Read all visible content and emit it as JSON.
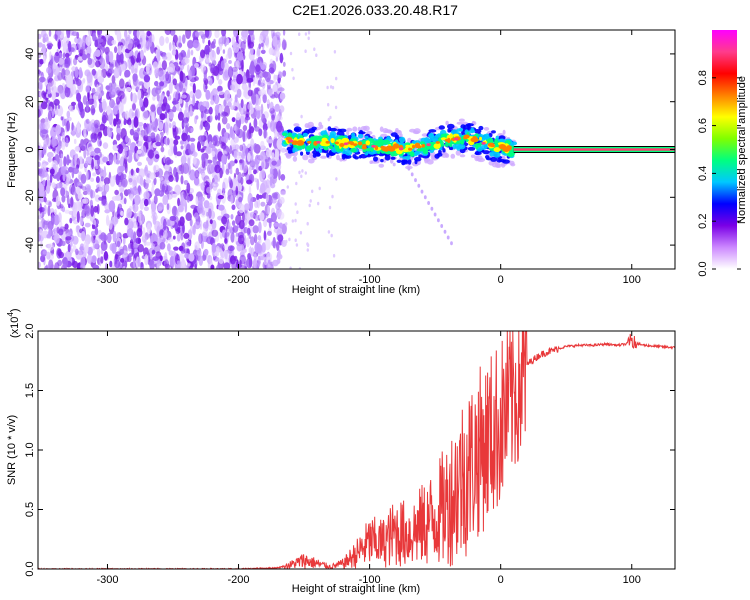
{
  "title": "C2E1.2026.033.20.48.R17",
  "chart_data": [
    {
      "type": "heatmap",
      "xlabel": "Height of straight line (km)",
      "ylabel": "Frequency (Hz)",
      "xlim": [
        -353,
        133
      ],
      "ylim": [
        -50,
        50
      ],
      "x_ticks": [
        -300,
        -200,
        -100,
        0,
        100
      ],
      "x_tick_labels": [
        "-300",
        "-200",
        "-100",
        "0",
        "100"
      ],
      "y_ticks": [
        -40,
        -20,
        0,
        20,
        40
      ],
      "y_tick_labels": [
        "-40",
        "-20",
        "0",
        "20",
        "40"
      ],
      "grid": false,
      "noise_region_x": [
        -353,
        -165
      ],
      "signal_track": {
        "x": [
          -165,
          -150,
          -130,
          -110,
          -90,
          -70,
          -55,
          -40,
          -25,
          -10,
          0,
          10
        ],
        "freq": [
          4,
          3,
          3,
          2,
          1,
          0,
          2,
          4,
          5,
          2,
          1,
          0
        ]
      },
      "carrier_line": {
        "x": [
          10,
          133
        ],
        "freq": 0
      },
      "colorbar": {
        "label": "Normalized spectral amplitude",
        "range": [
          0,
          1
        ],
        "ticks": [
          0.0,
          0.2,
          0.4,
          0.6,
          0.8
        ],
        "tick_labels": [
          "0.0",
          "0.2",
          "0.4",
          "0.6",
          "0.8"
        ],
        "colors": [
          "#ffffff",
          "#cc88ff",
          "#7a00e6",
          "#0000ff",
          "#00c8ff",
          "#00ff80",
          "#80ff00",
          "#ffff00",
          "#ff8000",
          "#ff0000",
          "#ff3c8c",
          "#ff00ff"
        ]
      }
    },
    {
      "type": "line",
      "xlabel": "Height of straight line (km)",
      "ylabel": "SNR (10 * v/v)",
      "y_multiplier": "(x10",
      "y_multiplier_exp": "4",
      "y_multiplier_close": ")",
      "xlim": [
        -353,
        133
      ],
      "ylim": [
        0,
        2.0
      ],
      "x_ticks": [
        -300,
        -200,
        -100,
        0,
        100
      ],
      "x_tick_labels": [
        "-300",
        "-200",
        "-100",
        "0",
        "100"
      ],
      "y_ticks": [
        0.0,
        0.5,
        1.0,
        1.5,
        2.0
      ],
      "y_tick_labels": [
        "0.0",
        "0.5",
        "1.0",
        "1.5",
        "2.0"
      ],
      "grid": false,
      "color": "#e8383a",
      "series": [
        {
          "x": [
            -353,
            -200,
            -170,
            -160,
            -150,
            -140,
            -130,
            -120,
            -110,
            -100,
            -90,
            -80,
            -70,
            -60,
            -50,
            -40,
            -30,
            -20,
            -10,
            0,
            5,
            10,
            15,
            20,
            30,
            40,
            50,
            60,
            70,
            80,
            90,
            100,
            110,
            120,
            133
          ],
          "y": [
            0.0,
            0.0,
            0.01,
            0.04,
            0.08,
            0.05,
            0.02,
            0.05,
            0.14,
            0.25,
            0.24,
            0.34,
            0.32,
            0.4,
            0.48,
            0.62,
            0.82,
            1.0,
            1.15,
            1.3,
            1.42,
            1.55,
            1.65,
            1.72,
            1.8,
            1.84,
            1.87,
            1.88,
            1.88,
            1.89,
            1.88,
            1.9,
            1.88,
            1.87,
            1.86
          ]
        }
      ]
    }
  ]
}
